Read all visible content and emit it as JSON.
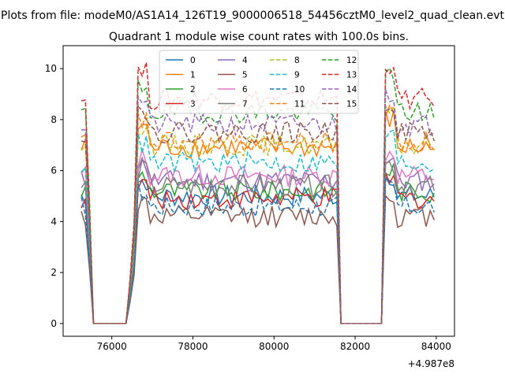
{
  "chart_data": {
    "type": "line",
    "suptitle": "Plots from file: modeM0/AS1A14_126T19_9000006518_54456cztM0_level2_quad_clean.evt",
    "title": "Quadrant 1 module wise count rates with 100.0s bins.",
    "xlabel": "",
    "ylabel": "",
    "x_offset_label": "+4.987e8",
    "xlim": [
      74800,
      84450
    ],
    "ylim": [
      -0.5,
      10.9
    ],
    "x_ticks": [
      76000,
      78000,
      80000,
      82000,
      84000
    ],
    "x_tick_labels": [
      "76000",
      "78000",
      "80000",
      "82000",
      "84000"
    ],
    "y_ticks": [
      0,
      2,
      4,
      6,
      8,
      10
    ],
    "y_tick_labels": [
      "0",
      "2",
      "4",
      "6",
      "8",
      "10"
    ],
    "legend": {
      "position": "top-center",
      "columns": 4
    },
    "shape": {
      "x_start": 75250,
      "dx": 100,
      "segments": [
        {
          "from": 75250,
          "to": 75450,
          "kind": "on"
        },
        {
          "from": 75550,
          "to": 76350,
          "kind": "zero"
        },
        {
          "from": 76450,
          "to": 76550,
          "kind": "rise"
        },
        {
          "from": 76650,
          "to": 81550,
          "kind": "on"
        },
        {
          "from": 81650,
          "to": 82650,
          "kind": "zero"
        },
        {
          "from": 82750,
          "to": 83950,
          "kind": "on"
        }
      ]
    },
    "series": [
      {
        "name": "0",
        "color": "#1f77b4",
        "dash": "solid",
        "level": 5.0
      },
      {
        "name": "1",
        "color": "#ff7f0e",
        "dash": "solid",
        "level": 6.9
      },
      {
        "name": "2",
        "color": "#2ca02c",
        "dash": "solid",
        "level": 5.2
      },
      {
        "name": "3",
        "color": "#d62728",
        "dash": "solid",
        "level": 4.9
      },
      {
        "name": "4",
        "color": "#9467bd",
        "dash": "solid",
        "level": 5.6
      },
      {
        "name": "5",
        "color": "#8c564b",
        "dash": "solid",
        "level": 4.2
      },
      {
        "name": "6",
        "color": "#e377c2",
        "dash": "solid",
        "level": 5.8
      },
      {
        "name": "7",
        "color": "#7f7f7f",
        "dash": "solid",
        "level": 5.4
      },
      {
        "name": "8",
        "color": "#bcbd22",
        "dash": "dashed",
        "level": 7.0
      },
      {
        "name": "9",
        "color": "#17becf",
        "dash": "dashed",
        "level": 6.3
      },
      {
        "name": "10",
        "color": "#1f77b4",
        "dash": "dashed",
        "level": 4.6
      },
      {
        "name": "11",
        "color": "#ff7f0e",
        "dash": "dashed",
        "level": 7.1
      },
      {
        "name": "12",
        "color": "#2ca02c",
        "dash": "dashed",
        "level": 8.3
      },
      {
        "name": "13",
        "color": "#d62728",
        "dash": "dashed",
        "level": 8.8
      },
      {
        "name": "14",
        "color": "#9467bd",
        "dash": "dashed",
        "level": 7.8
      },
      {
        "name": "15",
        "color": "#8c564b",
        "dash": "dashed",
        "level": 7.5
      }
    ]
  }
}
